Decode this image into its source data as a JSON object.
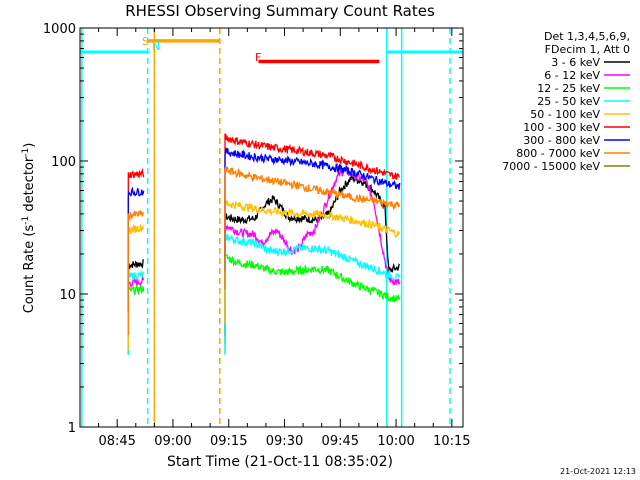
{
  "chart_data": {
    "type": "line",
    "title": "RHESSI Observing Summary Count Rates",
    "xlabel": "Start Time (21-Oct-11 08:35:02)",
    "ylabel_parts": [
      "Count Rate (s",
      "-1",
      " detector",
      "-1",
      ")"
    ],
    "yscale": "log",
    "ylim": [
      1,
      1000
    ],
    "xlim_minutes": [
      0,
      103
    ],
    "y_ticks": [
      {
        "value": 1,
        "label": "1"
      },
      {
        "value": 10,
        "label": "10"
      },
      {
        "value": 100,
        "label": "100"
      },
      {
        "value": 1000,
        "label": "1000"
      }
    ],
    "x_ticks": [
      {
        "t": 10,
        "label": "08:45"
      },
      {
        "t": 25,
        "label": "09:00"
      },
      {
        "t": 40,
        "label": "09:15"
      },
      {
        "t": 55,
        "label": "09:30"
      },
      {
        "t": 70,
        "label": "09:45"
      },
      {
        "t": 85,
        "label": "10:00"
      },
      {
        "t": 100,
        "label": "10:15"
      }
    ],
    "legend_header": [
      "Det 1,3,4,5,6,9,",
      "FDecim 1, Att 0"
    ],
    "legend_placement": "right",
    "flags": [
      {
        "label": "S",
        "color": "#ffa500",
        "t_start": 18.2,
        "t_end": 37.6,
        "level": 800
      },
      {
        "label": "N",
        "color": "#00ffff",
        "t_start": 20.0,
        "t_end": 20.0,
        "level": 650
      },
      {
        "label": "F",
        "color": "#ff0000",
        "t_start": 48.0,
        "t_end": 80.5,
        "level": 560
      }
    ],
    "night_bars": [
      {
        "color": "#00ffff",
        "t_start": 0,
        "t_end": 18.5,
        "level": 660
      },
      {
        "color": "#00ffff",
        "t_start": 82.5,
        "t_end": 103,
        "level": 660
      }
    ],
    "vertical_lines": [
      {
        "t": 0.5,
        "color": "#00ffff",
        "style": "solid"
      },
      {
        "t": 18.2,
        "color": "#00ffff",
        "style": "dashed"
      },
      {
        "t": 20.0,
        "color": "#ffa500",
        "style": "solid"
      },
      {
        "t": 37.6,
        "color": "#ffa500",
        "style": "dashed"
      },
      {
        "t": 82.5,
        "color": "#00ffff",
        "style": "solid"
      },
      {
        "t": 86.5,
        "color": "#00ffff",
        "style": "solid"
      },
      {
        "t": 99.5,
        "color": "#00ffff",
        "style": "dashed"
      }
    ],
    "segments": [
      {
        "t_start": 13.0,
        "t_end": 17.2
      },
      {
        "t_start": 39.0,
        "t_end": 86.0
      }
    ],
    "series": [
      {
        "name": "3 - 6 keV",
        "color": "#000000",
        "points": [
          [
            13,
            16.5
          ],
          [
            17.2,
            17
          ],
          [
            39,
            38
          ],
          [
            43,
            36
          ],
          [
            47,
            37
          ],
          [
            50,
            48
          ],
          [
            52,
            52
          ],
          [
            54,
            45
          ],
          [
            56,
            38
          ],
          [
            60,
            37
          ],
          [
            64,
            36
          ],
          [
            67,
            40
          ],
          [
            70,
            60
          ],
          [
            73,
            75
          ],
          [
            76,
            70
          ],
          [
            79,
            60
          ],
          [
            82,
            45
          ],
          [
            83,
            15
          ],
          [
            86,
            16
          ]
        ]
      },
      {
        "name": "6 - 12 keV",
        "color": "#ff00ff",
        "points": [
          [
            13,
            12
          ],
          [
            17.2,
            12.5
          ],
          [
            39,
            33
          ],
          [
            43,
            29
          ],
          [
            47,
            28
          ],
          [
            49,
            24
          ],
          [
            51,
            28
          ],
          [
            53,
            30
          ],
          [
            55,
            25
          ],
          [
            57,
            21
          ],
          [
            59,
            22
          ],
          [
            61,
            28
          ],
          [
            63,
            30
          ],
          [
            65,
            40
          ],
          [
            67,
            55
          ],
          [
            69,
            75
          ],
          [
            71,
            85
          ],
          [
            73,
            80
          ],
          [
            75,
            75
          ],
          [
            77,
            70
          ],
          [
            79,
            50
          ],
          [
            81,
            25
          ],
          [
            83,
            13
          ],
          [
            86,
            12
          ]
        ]
      },
      {
        "name": "12 - 25 keV",
        "color": "#00ff00",
        "points": [
          [
            13,
            10.5
          ],
          [
            17.2,
            11
          ],
          [
            39,
            19
          ],
          [
            43,
            17
          ],
          [
            47,
            16.5
          ],
          [
            51,
            15
          ],
          [
            55,
            14.5
          ],
          [
            59,
            15
          ],
          [
            63,
            15.5
          ],
          [
            67,
            15
          ],
          [
            71,
            13
          ],
          [
            75,
            11.5
          ],
          [
            79,
            10.5
          ],
          [
            83,
            9.5
          ],
          [
            86,
            9
          ]
        ]
      },
      {
        "name": "25 - 50 keV",
        "color": "#00ffff",
        "points": [
          [
            13,
            13.5
          ],
          [
            17.2,
            14
          ],
          [
            39,
            27
          ],
          [
            43,
            25
          ],
          [
            47,
            24
          ],
          [
            51,
            21
          ],
          [
            55,
            21
          ],
          [
            59,
            22
          ],
          [
            63,
            22
          ],
          [
            67,
            21
          ],
          [
            71,
            19
          ],
          [
            75,
            17
          ],
          [
            79,
            15.5
          ],
          [
            83,
            14
          ],
          [
            86,
            13
          ]
        ]
      },
      {
        "name": "50 - 100 keV",
        "color": "#ffc000",
        "points": [
          [
            13,
            30
          ],
          [
            17.2,
            32
          ],
          [
            39,
            48
          ],
          [
            43,
            46
          ],
          [
            47,
            44
          ],
          [
            51,
            42
          ],
          [
            55,
            41
          ],
          [
            59,
            40
          ],
          [
            63,
            40
          ],
          [
            67,
            39
          ],
          [
            71,
            37
          ],
          [
            75,
            35
          ],
          [
            79,
            33
          ],
          [
            83,
            30
          ],
          [
            86,
            28
          ]
        ]
      },
      {
        "name": "100 - 300 keV",
        "color": "#ff0000",
        "points": [
          [
            13,
            79
          ],
          [
            17.2,
            80
          ],
          [
            39,
            150
          ],
          [
            43,
            140
          ],
          [
            47,
            133
          ],
          [
            51,
            127
          ],
          [
            55,
            123
          ],
          [
            59,
            119
          ],
          [
            63,
            114
          ],
          [
            67,
            109
          ],
          [
            71,
            101
          ],
          [
            75,
            93
          ],
          [
            79,
            86
          ],
          [
            83,
            79
          ],
          [
            86,
            76
          ]
        ]
      },
      {
        "name": "300 - 800 keV",
        "color": "#0000ff",
        "points": [
          [
            13,
            58
          ],
          [
            17.2,
            59
          ],
          [
            39,
            118
          ],
          [
            43,
            112
          ],
          [
            47,
            107
          ],
          [
            51,
            104
          ],
          [
            55,
            101
          ],
          [
            59,
            98
          ],
          [
            63,
            95
          ],
          [
            67,
            91
          ],
          [
            71,
            86
          ],
          [
            75,
            80
          ],
          [
            79,
            73
          ],
          [
            83,
            67
          ],
          [
            86,
            64
          ]
        ]
      },
      {
        "name": "800 - 7000 keV",
        "color": "#ff8000",
        "points": [
          [
            13,
            39
          ],
          [
            17.2,
            40
          ],
          [
            39,
            86
          ],
          [
            43,
            80
          ],
          [
            47,
            75
          ],
          [
            51,
            72
          ],
          [
            55,
            68
          ],
          [
            59,
            65
          ],
          [
            63,
            61
          ],
          [
            67,
            58
          ],
          [
            71,
            55
          ],
          [
            75,
            52
          ],
          [
            79,
            50
          ],
          [
            83,
            48
          ],
          [
            86,
            46
          ]
        ]
      },
      {
        "name": "7000 - 15000 keV",
        "color": "#808000",
        "points": []
      }
    ],
    "footer_date": "21-Oct-2021 12:13"
  }
}
